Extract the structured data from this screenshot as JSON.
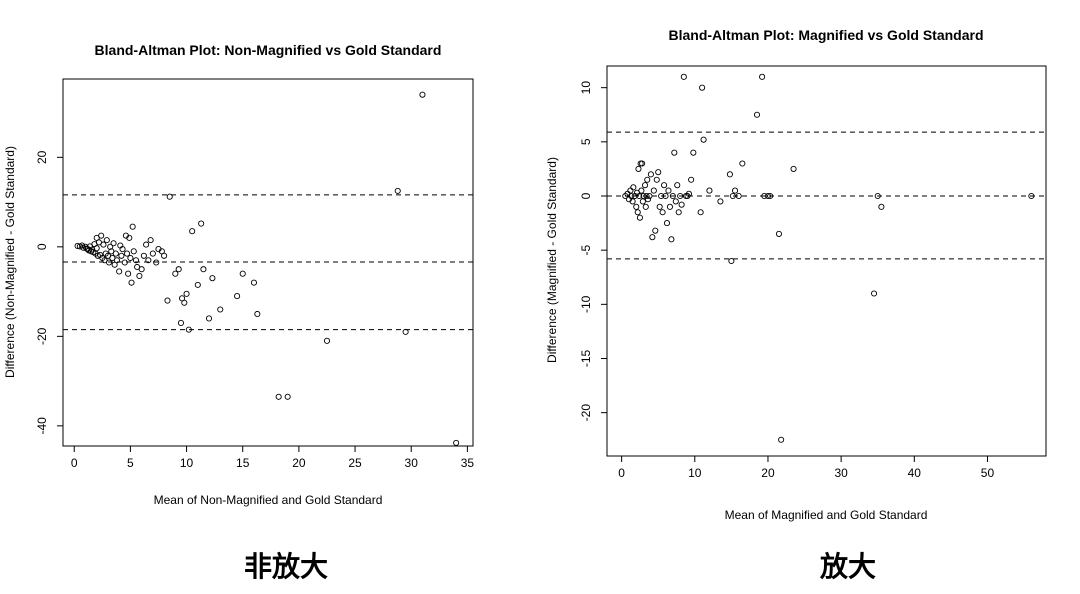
{
  "chart_data": [
    {
      "type": "scatter",
      "title": "Bland-Altman Plot: Non-Magnified vs Gold Standard",
      "xlabel": "Mean of Non-Magnified and Gold Standard",
      "ylabel": "Difference (Non-Magnified - Gold Standard)",
      "xlim": [
        -1,
        35.5
      ],
      "ylim": [
        -44.5,
        37.5
      ],
      "xticks": [
        0,
        5,
        10,
        15,
        20,
        25,
        30,
        35
      ],
      "yticks": [
        -40,
        -20,
        0,
        20
      ],
      "grid": false,
      "reference_lines": [
        {
          "label": "upper limit of agreement",
          "y": 11.6
        },
        {
          "label": "mean difference",
          "y": -3.4
        },
        {
          "label": "lower limit of agreement",
          "y": -18.5
        }
      ],
      "points": [
        [
          0.3,
          0.2
        ],
        [
          0.5,
          0.1
        ],
        [
          0.7,
          0.3
        ],
        [
          0.8,
          -0.2
        ],
        [
          1.0,
          0.0
        ],
        [
          1.1,
          -0.4
        ],
        [
          1.2,
          -0.5
        ],
        [
          1.3,
          -0.8
        ],
        [
          1.4,
          0.1
        ],
        [
          1.5,
          -1.0
        ],
        [
          1.6,
          -0.6
        ],
        [
          1.7,
          -1.2
        ],
        [
          1.8,
          0.6
        ],
        [
          1.9,
          -1.5
        ],
        [
          2.0,
          -0.3
        ],
        [
          2.0,
          2.0
        ],
        [
          2.1,
          -2.0
        ],
        [
          2.2,
          1.0
        ],
        [
          2.3,
          -1.8
        ],
        [
          2.4,
          2.5
        ],
        [
          2.5,
          -2.5
        ],
        [
          2.6,
          0.5
        ],
        [
          2.7,
          -3.0
        ],
        [
          2.8,
          -1.5
        ],
        [
          2.9,
          1.5
        ],
        [
          3.0,
          -2.0
        ],
        [
          3.1,
          -3.5
        ],
        [
          3.2,
          0.0
        ],
        [
          3.3,
          -1.0
        ],
        [
          3.4,
          -2.5
        ],
        [
          3.5,
          0.8
        ],
        [
          3.6,
          -4.0
        ],
        [
          3.7,
          -1.5
        ],
        [
          3.8,
          -3.0
        ],
        [
          4.0,
          -5.5
        ],
        [
          4.1,
          0.3
        ],
        [
          4.2,
          -2.0
        ],
        [
          4.3,
          -0.5
        ],
        [
          4.5,
          -3.5
        ],
        [
          4.6,
          2.5
        ],
        [
          4.7,
          -1.5
        ],
        [
          4.8,
          -6.0
        ],
        [
          4.9,
          2.0
        ],
        [
          5.0,
          -2.5
        ],
        [
          5.1,
          -8.0
        ],
        [
          5.2,
          4.5
        ],
        [
          5.3,
          -1.0
        ],
        [
          5.5,
          -3.0
        ],
        [
          5.6,
          -4.5
        ],
        [
          5.8,
          -6.5
        ],
        [
          6.0,
          -5.0
        ],
        [
          6.2,
          -2.0
        ],
        [
          6.4,
          0.5
        ],
        [
          6.6,
          -3.0
        ],
        [
          6.8,
          1.5
        ],
        [
          7.0,
          -1.5
        ],
        [
          7.3,
          -3.5
        ],
        [
          7.5,
          -0.5
        ],
        [
          7.8,
          -1.0
        ],
        [
          8.0,
          -2.0
        ],
        [
          8.3,
          -12.0
        ],
        [
          8.5,
          11.2
        ],
        [
          9.0,
          -6.0
        ],
        [
          9.3,
          -5.0
        ],
        [
          9.5,
          -17.0
        ],
        [
          9.6,
          -11.5
        ],
        [
          9.8,
          -12.5
        ],
        [
          10.0,
          -10.5
        ],
        [
          10.2,
          -18.5
        ],
        [
          10.5,
          3.5
        ],
        [
          11.0,
          -8.5
        ],
        [
          11.3,
          5.2
        ],
        [
          11.5,
          -5.0
        ],
        [
          12.0,
          -16.0
        ],
        [
          12.3,
          -7.0
        ],
        [
          13.0,
          -14.0
        ],
        [
          14.5,
          -11.0
        ],
        [
          15.0,
          -6.0
        ],
        [
          16.0,
          -8.0
        ],
        [
          16.3,
          -15.0
        ],
        [
          18.2,
          -33.5
        ],
        [
          19.0,
          -33.5
        ],
        [
          22.5,
          -21.0
        ],
        [
          28.8,
          12.5
        ],
        [
          29.5,
          -19.0
        ],
        [
          31.0,
          34.0
        ],
        [
          34.0,
          -43.8
        ]
      ]
    },
    {
      "type": "scatter",
      "title": "Bland-Altman Plot: Magnified vs Gold Standard",
      "xlabel": "Mean of Magnified and Gold Standard",
      "ylabel": "Difference (Magnified - Gold Standard)",
      "xlim": [
        -2,
        58
      ],
      "ylim": [
        -24,
        12
      ],
      "xticks": [
        0,
        10,
        20,
        30,
        40,
        50
      ],
      "yticks": [
        -20,
        -15,
        -10,
        -5,
        0,
        5,
        10
      ],
      "grid": false,
      "reference_lines": [
        {
          "label": "upper limit of agreement",
          "y": 5.9
        },
        {
          "label": "mean difference",
          "y": 0.0
        },
        {
          "label": "lower limit of agreement",
          "y": -5.8
        }
      ],
      "points": [
        [
          0.5,
          0.0
        ],
        [
          0.8,
          0.2
        ],
        [
          1.0,
          -0.3
        ],
        [
          1.2,
          0.5
        ],
        [
          1.3,
          0.0
        ],
        [
          1.5,
          -0.5
        ],
        [
          1.6,
          0.8
        ],
        [
          1.8,
          0.0
        ],
        [
          2.0,
          -1.0
        ],
        [
          2.1,
          0.3
        ],
        [
          2.2,
          -1.5
        ],
        [
          2.3,
          2.5
        ],
        [
          2.4,
          0.0
        ],
        [
          2.5,
          -2.0
        ],
        [
          2.6,
          3.0
        ],
        [
          2.7,
          0.5
        ],
        [
          2.8,
          3.0
        ],
        [
          2.9,
          -0.5
        ],
        [
          3.0,
          0.0
        ],
        [
          3.2,
          1.0
        ],
        [
          3.3,
          -1.0
        ],
        [
          3.4,
          0.0
        ],
        [
          3.5,
          1.5
        ],
        [
          3.6,
          -0.3
        ],
        [
          3.8,
          0.0
        ],
        [
          4.0,
          2.0
        ],
        [
          4.2,
          -3.8
        ],
        [
          4.4,
          0.5
        ],
        [
          4.6,
          -3.2
        ],
        [
          4.8,
          1.5
        ],
        [
          5.0,
          2.2
        ],
        [
          5.2,
          -1.0
        ],
        [
          5.4,
          0.0
        ],
        [
          5.6,
          -1.5
        ],
        [
          5.8,
          1.0
        ],
        [
          6.0,
          0.0
        ],
        [
          6.2,
          -2.5
        ],
        [
          6.4,
          0.5
        ],
        [
          6.6,
          -1.0
        ],
        [
          6.8,
          -4.0
        ],
        [
          7.0,
          0.0
        ],
        [
          7.2,
          4.0
        ],
        [
          7.4,
          -0.5
        ],
        [
          7.6,
          1.0
        ],
        [
          7.8,
          -1.5
        ],
        [
          8.0,
          0.0
        ],
        [
          8.2,
          -0.8
        ],
        [
          8.5,
          11.0
        ],
        [
          8.8,
          0.0
        ],
        [
          9.0,
          0.0
        ],
        [
          9.2,
          0.2
        ],
        [
          9.5,
          1.5
        ],
        [
          9.8,
          4.0
        ],
        [
          10.8,
          -1.5
        ],
        [
          11.0,
          10.0
        ],
        [
          11.2,
          5.2
        ],
        [
          12.0,
          0.5
        ],
        [
          13.5,
          -0.5
        ],
        [
          14.8,
          2.0
        ],
        [
          15.0,
          -6.0
        ],
        [
          15.2,
          0.0
        ],
        [
          15.5,
          0.5
        ],
        [
          16.0,
          0.0
        ],
        [
          16.5,
          3.0
        ],
        [
          18.5,
          7.5
        ],
        [
          19.2,
          11.0
        ],
        [
          19.5,
          0.0
        ],
        [
          20.0,
          0.0
        ],
        [
          20.3,
          0.0
        ],
        [
          21.5,
          -3.5
        ],
        [
          21.8,
          -22.5
        ],
        [
          23.5,
          2.5
        ],
        [
          34.5,
          -9.0
        ],
        [
          35.0,
          0.0
        ],
        [
          35.5,
          -1.0
        ],
        [
          56.0,
          0.0
        ]
      ]
    }
  ],
  "captions": {
    "left": "非放大",
    "right": "放大"
  }
}
